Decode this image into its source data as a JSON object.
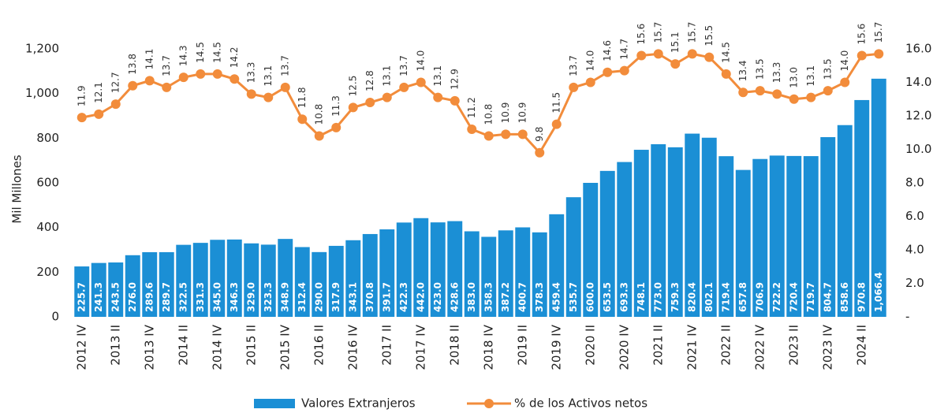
{
  "chart_data": {
    "type": "bar-line",
    "y_label": "Mil Millones",
    "categories": [
      "2012 IV",
      null,
      "2013 II",
      null,
      "2013 IV",
      null,
      "2014 II",
      null,
      "2014 IV",
      null,
      "2015 II",
      null,
      "2015 IV",
      null,
      "2016 II",
      null,
      "2016 IV",
      null,
      "2017 II",
      null,
      "2017 IV",
      null,
      "2018 II",
      null,
      "2018 IV",
      null,
      "2019 II",
      null,
      "2019 IV",
      null,
      "2020 II",
      null,
      "2020 IV",
      null,
      "2021 II",
      null,
      "2021 IV",
      null,
      "2022 II",
      null,
      "2022 IV",
      null,
      "2023 II",
      null,
      "2023 IV",
      null,
      "2024 II",
      null
    ],
    "series": [
      {
        "name": "Valores Extranjeros",
        "type": "bar",
        "color": "#1b8fd5",
        "values": [
          225.7,
          241.3,
          243.5,
          276.0,
          289.6,
          289.7,
          322.5,
          331.3,
          345.0,
          346.3,
          329.0,
          323.3,
          348.9,
          312.4,
          290.0,
          317.9,
          343.1,
          370.8,
          391.7,
          422.3,
          442.0,
          423.0,
          428.6,
          383.0,
          358.3,
          387.2,
          400.7,
          378.3,
          459.4,
          535.7,
          600.0,
          653.5,
          693.3,
          748.1,
          773.0,
          759.3,
          820.4,
          802.1,
          719.4,
          657.8,
          706.9,
          722.2,
          720.4,
          719.7,
          804.7,
          858.6,
          970.8,
          1066.4
        ],
        "value_labels": [
          "225.7",
          "241.3",
          "243.5",
          "276.0",
          "289.6",
          "289.7",
          "322.5",
          "331.3",
          "345.0",
          "346.3",
          "329.0",
          "323.3",
          "348.9",
          "312.4",
          "290.0",
          "317.9",
          "343.1",
          "370.8",
          "391.7",
          "422.3",
          "442.0",
          "423.0",
          "428.6",
          "383.0",
          "358.3",
          "387.2",
          "400.7",
          "378.3",
          "459.4",
          "535.7",
          "600.0",
          "653.5",
          "693.3",
          "748.1",
          "773.0",
          "759.3",
          "820.4",
          "802.1",
          "719.4",
          "657.8",
          "706.9",
          "722.2",
          "720.4",
          "719.7",
          "804.7",
          "858.6",
          "970.8",
          "1,066.4"
        ]
      },
      {
        "name": "% de los Activos netos",
        "type": "line",
        "axis": "y2",
        "color": "#f28c3b",
        "values": [
          11.9,
          12.1,
          12.7,
          13.8,
          14.1,
          13.7,
          14.3,
          14.5,
          14.5,
          14.2,
          13.3,
          13.1,
          13.7,
          11.8,
          10.8,
          11.3,
          12.5,
          12.8,
          13.1,
          13.7,
          14.0,
          13.1,
          12.9,
          11.2,
          10.8,
          10.9,
          10.9,
          9.8,
          11.5,
          13.7,
          14.0,
          14.6,
          14.7,
          15.6,
          15.7,
          15.1,
          15.7,
          15.5,
          14.5,
          13.4,
          13.5,
          13.3,
          13.0,
          13.1,
          13.5,
          14.0,
          15.6,
          15.7
        ],
        "value_labels": [
          "11.9",
          "12.1",
          "12.7",
          "13.8",
          "14.1",
          "13.7",
          "14.3",
          "14.5",
          "14.5",
          "14.2",
          "13.3",
          "13.1",
          "13.7",
          "11.8",
          "10.8",
          "11.3",
          "12.5",
          "12.8",
          "13.1",
          "13.7",
          "14.0",
          "13.1",
          "12.9",
          "11.2",
          "10.8",
          "10.9",
          "10.9",
          "9.8",
          "11.5",
          "13.7",
          "14.0",
          "14.6",
          "14.7",
          "15.6",
          "15.7",
          "15.1",
          "15.7",
          "15.5",
          "14.5",
          "13.4",
          "13.5",
          "13.3",
          "13.0",
          "13.1",
          "13.5",
          "14.0",
          "15.6",
          "15.7"
        ]
      }
    ],
    "ylim": [
      0,
      1200
    ],
    "yticks": [
      0,
      200,
      400,
      600,
      800,
      {
        "value": 1000,
        "label": "1,000"
      },
      {
        "value": 1200,
        "label": "1,200"
      }
    ],
    "y2lim": [
      0,
      16
    ],
    "y2ticks": [
      {
        "value": 0,
        "label": "-"
      },
      {
        "value": 2,
        "label": "2.0"
      },
      {
        "value": 4,
        "label": "4.0"
      },
      {
        "value": 6,
        "label": "6.0"
      },
      {
        "value": 8,
        "label": "8.0"
      },
      {
        "value": 10,
        "label": "10.0"
      },
      {
        "value": 12,
        "label": "12.0"
      },
      {
        "value": 14,
        "label": "14.0"
      },
      {
        "value": 16,
        "label": "16.0"
      }
    ],
    "legend": "bottom"
  }
}
